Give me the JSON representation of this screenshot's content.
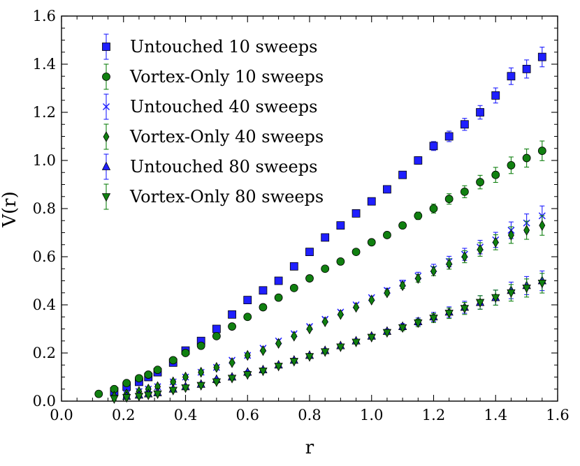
{
  "chart_data": {
    "type": "scatter",
    "title": "",
    "xlabel": "r",
    "ylabel": "V(r)",
    "xlim": [
      0.0,
      1.6
    ],
    "ylim": [
      0.0,
      1.6
    ],
    "xticks": [
      "0.0",
      "0.2",
      "0.4",
      "0.6",
      "0.8",
      "1.0",
      "1.2",
      "1.4",
      "1.6"
    ],
    "yticks": [
      "0.0",
      "0.2",
      "0.4",
      "0.6",
      "0.8",
      "1.0",
      "1.2",
      "1.4",
      "1.6"
    ],
    "legend_position": "top-left",
    "series": [
      {
        "name": "Untouched 10 sweeps",
        "marker": "square",
        "fill": "#1f1fff",
        "errcolor": "#1f1fff",
        "x": [
          0.17,
          0.21,
          0.25,
          0.28,
          0.31,
          0.36,
          0.4,
          0.45,
          0.5,
          0.55,
          0.6,
          0.65,
          0.7,
          0.75,
          0.8,
          0.85,
          0.9,
          0.95,
          1.0,
          1.05,
          1.1,
          1.15,
          1.2,
          1.25,
          1.3,
          1.35,
          1.4,
          1.45,
          1.5,
          1.55
        ],
        "y": [
          0.04,
          0.06,
          0.08,
          0.1,
          0.12,
          0.16,
          0.21,
          0.25,
          0.3,
          0.36,
          0.42,
          0.46,
          0.5,
          0.56,
          0.62,
          0.68,
          0.73,
          0.78,
          0.83,
          0.88,
          0.94,
          1.0,
          1.06,
          1.1,
          1.15,
          1.2,
          1.27,
          1.35,
          1.38,
          1.43
        ]
      },
      {
        "name": "Vortex-Only 10 sweeps",
        "marker": "circle",
        "fill": "#108010",
        "errcolor": "#108010",
        "x": [
          0.12,
          0.17,
          0.21,
          0.25,
          0.28,
          0.31,
          0.36,
          0.4,
          0.45,
          0.5,
          0.55,
          0.6,
          0.65,
          0.7,
          0.75,
          0.8,
          0.85,
          0.9,
          0.95,
          1.0,
          1.05,
          1.1,
          1.15,
          1.2,
          1.25,
          1.3,
          1.35,
          1.4,
          1.45,
          1.5,
          1.55
        ],
        "y": [
          0.03,
          0.05,
          0.075,
          0.095,
          0.11,
          0.13,
          0.17,
          0.2,
          0.23,
          0.27,
          0.31,
          0.35,
          0.39,
          0.43,
          0.47,
          0.51,
          0.55,
          0.58,
          0.62,
          0.66,
          0.69,
          0.73,
          0.77,
          0.8,
          0.84,
          0.87,
          0.91,
          0.94,
          0.98,
          1.01,
          1.04
        ]
      },
      {
        "name": "Untouched 40 sweeps",
        "marker": "x",
        "fill": "#1f1fff",
        "errcolor": "#1f1fff",
        "x": [
          0.21,
          0.25,
          0.28,
          0.31,
          0.36,
          0.4,
          0.45,
          0.5,
          0.55,
          0.6,
          0.65,
          0.7,
          0.75,
          0.8,
          0.85,
          0.9,
          0.95,
          1.0,
          1.05,
          1.1,
          1.15,
          1.2,
          1.25,
          1.3,
          1.35,
          1.4,
          1.45,
          1.5,
          1.55
        ],
        "y": [
          0.03,
          0.04,
          0.05,
          0.06,
          0.08,
          0.1,
          0.12,
          0.14,
          0.17,
          0.19,
          0.22,
          0.25,
          0.28,
          0.31,
          0.34,
          0.37,
          0.4,
          0.43,
          0.46,
          0.49,
          0.52,
          0.55,
          0.58,
          0.61,
          0.64,
          0.67,
          0.71,
          0.74,
          0.77
        ]
      },
      {
        "name": "Vortex-Only 40 sweeps",
        "marker": "diamond",
        "fill": "#108010",
        "errcolor": "#108010",
        "x": [
          0.17,
          0.21,
          0.25,
          0.28,
          0.31,
          0.36,
          0.4,
          0.45,
          0.5,
          0.55,
          0.6,
          0.65,
          0.7,
          0.75,
          0.8,
          0.85,
          0.9,
          0.95,
          1.0,
          1.05,
          1.1,
          1.15,
          1.2,
          1.25,
          1.3,
          1.35,
          1.4,
          1.45,
          1.5,
          1.55
        ],
        "y": [
          0.02,
          0.03,
          0.04,
          0.05,
          0.06,
          0.08,
          0.1,
          0.12,
          0.14,
          0.16,
          0.19,
          0.21,
          0.24,
          0.27,
          0.3,
          0.33,
          0.36,
          0.39,
          0.42,
          0.45,
          0.48,
          0.51,
          0.54,
          0.57,
          0.6,
          0.63,
          0.66,
          0.69,
          0.71,
          0.73
        ]
      },
      {
        "name": "Untouched 80 sweeps",
        "marker": "triangle-up",
        "fill": "#1f1fff",
        "errcolor": "#1f1fff",
        "x": [
          0.21,
          0.25,
          0.28,
          0.31,
          0.36,
          0.4,
          0.45,
          0.5,
          0.55,
          0.6,
          0.65,
          0.7,
          0.75,
          0.8,
          0.85,
          0.9,
          0.95,
          1.0,
          1.05,
          1.1,
          1.15,
          1.2,
          1.25,
          1.3,
          1.35,
          1.4,
          1.45,
          1.5,
          1.55
        ],
        "y": [
          0.02,
          0.025,
          0.03,
          0.035,
          0.05,
          0.06,
          0.07,
          0.09,
          0.1,
          0.12,
          0.13,
          0.15,
          0.17,
          0.19,
          0.21,
          0.23,
          0.25,
          0.27,
          0.29,
          0.31,
          0.33,
          0.35,
          0.37,
          0.39,
          0.41,
          0.43,
          0.46,
          0.48,
          0.5
        ]
      },
      {
        "name": "Vortex-Only 80 sweeps",
        "marker": "triangle-down",
        "fill": "#108010",
        "errcolor": "#108010",
        "x": [
          0.17,
          0.21,
          0.25,
          0.28,
          0.31,
          0.36,
          0.4,
          0.45,
          0.5,
          0.55,
          0.6,
          0.65,
          0.7,
          0.75,
          0.8,
          0.85,
          0.9,
          0.95,
          1.0,
          1.05,
          1.1,
          1.15,
          1.2,
          1.25,
          1.3,
          1.35,
          1.4,
          1.45,
          1.5,
          1.55
        ],
        "y": [
          0.01,
          0.015,
          0.02,
          0.025,
          0.03,
          0.045,
          0.055,
          0.065,
          0.08,
          0.095,
          0.11,
          0.125,
          0.145,
          0.165,
          0.185,
          0.205,
          0.225,
          0.245,
          0.265,
          0.285,
          0.305,
          0.325,
          0.345,
          0.365,
          0.385,
          0.41,
          0.43,
          0.45,
          0.47,
          0.49
        ]
      }
    ]
  }
}
